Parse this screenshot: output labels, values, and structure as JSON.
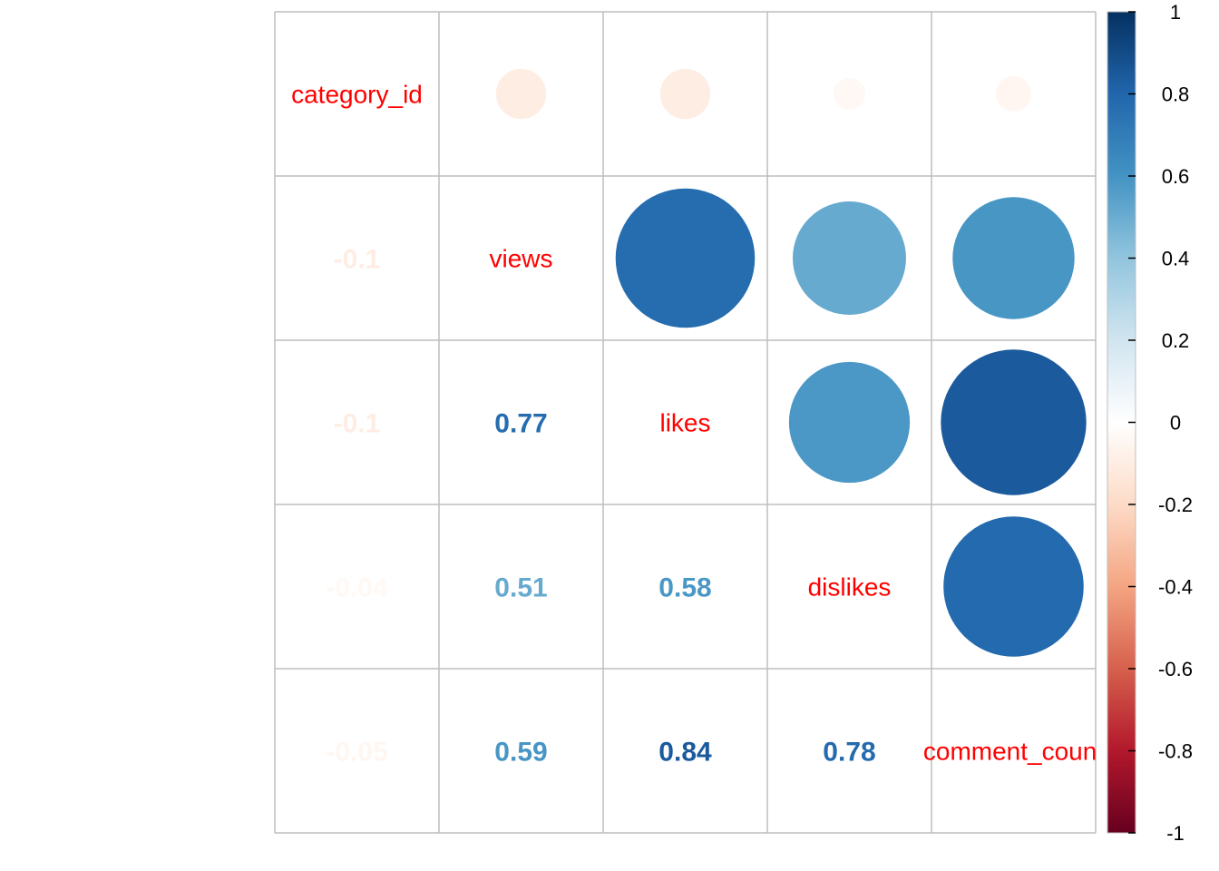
{
  "chart_data": {
    "type": "heatmap",
    "variables": [
      "category_id",
      "views",
      "likes",
      "dislikes",
      "comment_count"
    ],
    "matrix": [
      [
        1.0,
        -0.1,
        -0.1,
        -0.04,
        -0.05
      ],
      [
        -0.1,
        1.0,
        0.77,
        0.51,
        0.59
      ],
      [
        -0.1,
        0.77,
        1.0,
        0.58,
        0.84
      ],
      [
        -0.04,
        0.51,
        0.58,
        1.0,
        0.78
      ],
      [
        -0.05,
        0.59,
        0.84,
        0.78,
        1.0
      ]
    ],
    "lower_triangle_labels": [
      {
        "row": 1,
        "col": 0,
        "label": "-0.1"
      },
      {
        "row": 2,
        "col": 0,
        "label": "-0.1"
      },
      {
        "row": 2,
        "col": 1,
        "label": "0.77"
      },
      {
        "row": 3,
        "col": 0,
        "label": "-0.04"
      },
      {
        "row": 3,
        "col": 1,
        "label": "0.51"
      },
      {
        "row": 3,
        "col": 2,
        "label": "0.58"
      },
      {
        "row": 4,
        "col": 0,
        "label": "-0.05"
      },
      {
        "row": 4,
        "col": 1,
        "label": "0.59"
      },
      {
        "row": 4,
        "col": 2,
        "label": "0.84"
      },
      {
        "row": 4,
        "col": 3,
        "label": "0.78"
      }
    ],
    "upper_triangle_style": "circle",
    "lower_triangle_style": "number",
    "diagonal_label_color": "#FF0000",
    "colorbar": {
      "range": [
        -1,
        1
      ],
      "ticks": [
        "1",
        "0.8",
        "0.6",
        "0.4",
        "0.2",
        "0",
        "-0.2",
        "-0.4",
        "-0.6",
        "-0.8",
        "-1"
      ],
      "placement": "right",
      "colors": [
        "#67001F",
        "#B2182B",
        "#D6604D",
        "#F4A582",
        "#FDDBC7",
        "#FFFFFF",
        "#D1E5F0",
        "#92C5DE",
        "#4393C3",
        "#2166AC",
        "#053061"
      ]
    },
    "grid_color": "#BEBEBE"
  }
}
